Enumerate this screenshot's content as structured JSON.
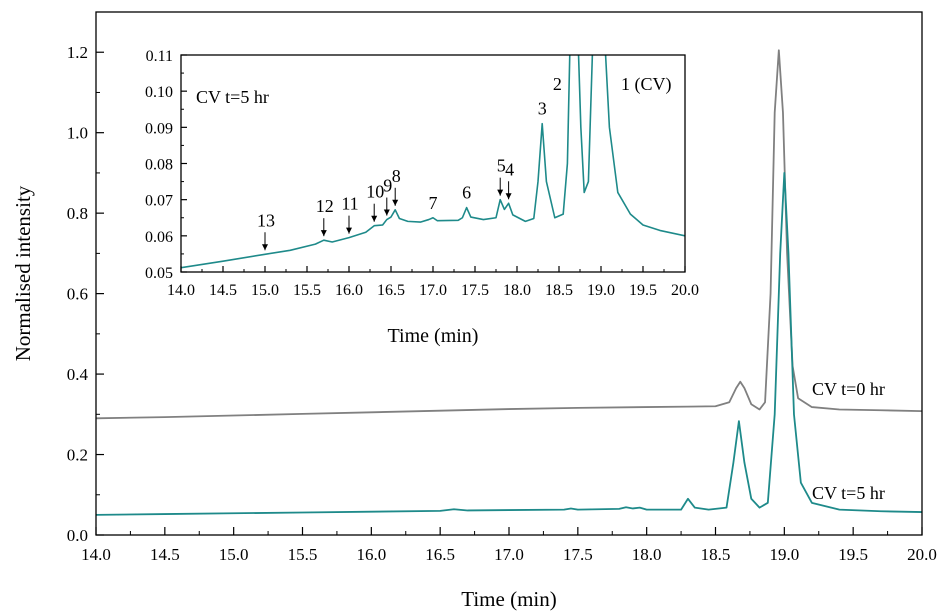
{
  "chart_data": [
    {
      "type": "line",
      "xlabel": "Time (min)",
      "ylabel": "Normalised intensity",
      "xlim": [
        14.0,
        20.0
      ],
      "ylim": [
        0.0,
        1.3
      ],
      "x_ticks": [
        "14.0",
        "14.5",
        "15.0",
        "15.5",
        "16.0",
        "16.5",
        "17.0",
        "17.5",
        "18.0",
        "18.5",
        "19.0",
        "19.5",
        "20.0"
      ],
      "y_ticks": [
        "0.0",
        "0.2",
        "0.4",
        "0.6",
        "0.8",
        "1.0",
        "1.2"
      ],
      "series": [
        {
          "name": "CV t=0 hr",
          "color": "#808080",
          "points": [
            [
              14.0,
              0.29
            ],
            [
              14.5,
              0.293
            ],
            [
              15.0,
              0.297
            ],
            [
              15.5,
              0.301
            ],
            [
              16.0,
              0.305
            ],
            [
              16.5,
              0.309
            ],
            [
              17.0,
              0.313
            ],
            [
              17.5,
              0.316
            ],
            [
              18.0,
              0.318
            ],
            [
              18.3,
              0.319
            ],
            [
              18.5,
              0.32
            ],
            [
              18.6,
              0.33
            ],
            [
              18.65,
              0.365
            ],
            [
              18.68,
              0.381
            ],
            [
              18.71,
              0.365
            ],
            [
              18.76,
              0.325
            ],
            [
              18.82,
              0.312
            ],
            [
              18.86,
              0.33
            ],
            [
              18.9,
              0.6
            ],
            [
              18.93,
              1.05
            ],
            [
              18.96,
              1.205
            ],
            [
              18.99,
              1.05
            ],
            [
              19.02,
              0.7
            ],
            [
              19.06,
              0.42
            ],
            [
              19.1,
              0.34
            ],
            [
              19.2,
              0.318
            ],
            [
              19.4,
              0.312
            ],
            [
              19.7,
              0.31
            ],
            [
              20.0,
              0.308
            ]
          ]
        },
        {
          "name": "CV t=5 hr",
          "color": "#1e8a8a",
          "points": [
            [
              14.0,
              0.05
            ],
            [
              14.5,
              0.052
            ],
            [
              15.0,
              0.054
            ],
            [
              15.5,
              0.056
            ],
            [
              16.0,
              0.058
            ],
            [
              16.5,
              0.06
            ],
            [
              16.6,
              0.064
            ],
            [
              16.7,
              0.061
            ],
            [
              17.0,
              0.062
            ],
            [
              17.4,
              0.063
            ],
            [
              17.45,
              0.066
            ],
            [
              17.5,
              0.063
            ],
            [
              17.8,
              0.065
            ],
            [
              17.85,
              0.069
            ],
            [
              17.9,
              0.066
            ],
            [
              17.95,
              0.068
            ],
            [
              18.0,
              0.063
            ],
            [
              18.25,
              0.063
            ],
            [
              18.3,
              0.09
            ],
            [
              18.35,
              0.068
            ],
            [
              18.45,
              0.063
            ],
            [
              18.58,
              0.068
            ],
            [
              18.63,
              0.18
            ],
            [
              18.67,
              0.283
            ],
            [
              18.71,
              0.18
            ],
            [
              18.76,
              0.09
            ],
            [
              18.82,
              0.068
            ],
            [
              18.88,
              0.08
            ],
            [
              18.93,
              0.3
            ],
            [
              18.97,
              0.7
            ],
            [
              19.0,
              0.9
            ],
            [
              19.03,
              0.7
            ],
            [
              19.07,
              0.3
            ],
            [
              19.12,
              0.13
            ],
            [
              19.2,
              0.08
            ],
            [
              19.4,
              0.063
            ],
            [
              19.7,
              0.059
            ],
            [
              20.0,
              0.057
            ]
          ]
        }
      ],
      "annotations": [
        "CV t=0 hr",
        "CV t=5 hr"
      ]
    },
    {
      "type": "line",
      "title": "CV t=5 hr",
      "xlabel": "Time (min)",
      "ylabel": "",
      "xlim": [
        14.0,
        20.0
      ],
      "ylim": [
        0.05,
        0.11
      ],
      "x_ticks": [
        "14.0",
        "14.5",
        "15.0",
        "15.5",
        "16.0",
        "16.5",
        "17.0",
        "17.5",
        "18.0",
        "18.5",
        "19.0",
        "19.5",
        "20.0"
      ],
      "y_ticks": [
        "0.05",
        "0.06",
        "0.07",
        "0.08",
        "0.09",
        "0.10",
        "0.11"
      ],
      "series": [
        {
          "color": "#1e8a8a",
          "points": [
            [
              14.0,
              0.0512
            ],
            [
              14.5,
              0.053
            ],
            [
              15.0,
              0.0549
            ],
            [
              15.3,
              0.056
            ],
            [
              15.6,
              0.0577
            ],
            [
              15.7,
              0.0588
            ],
            [
              15.8,
              0.0583
            ],
            [
              16.0,
              0.0595
            ],
            [
              16.2,
              0.061
            ],
            [
              16.3,
              0.0628
            ],
            [
              16.4,
              0.063
            ],
            [
              16.45,
              0.0645
            ],
            [
              16.5,
              0.0652
            ],
            [
              16.55,
              0.0672
            ],
            [
              16.6,
              0.0648
            ],
            [
              16.7,
              0.064
            ],
            [
              16.85,
              0.0638
            ],
            [
              16.95,
              0.0645
            ],
            [
              17.0,
              0.065
            ],
            [
              17.05,
              0.0642
            ],
            [
              17.3,
              0.0643
            ],
            [
              17.35,
              0.065
            ],
            [
              17.4,
              0.0678
            ],
            [
              17.45,
              0.0652
            ],
            [
              17.6,
              0.0645
            ],
            [
              17.75,
              0.065
            ],
            [
              17.8,
              0.07
            ],
            [
              17.85,
              0.0673
            ],
            [
              17.9,
              0.069
            ],
            [
              17.95,
              0.0658
            ],
            [
              18.1,
              0.064
            ],
            [
              18.2,
              0.0648
            ],
            [
              18.25,
              0.075
            ],
            [
              18.3,
              0.091
            ],
            [
              18.35,
              0.075
            ],
            [
              18.45,
              0.065
            ],
            [
              18.55,
              0.066
            ],
            [
              18.6,
              0.08
            ],
            [
              18.63,
              0.112
            ],
            [
              18.73,
              0.112
            ],
            [
              18.76,
              0.09
            ],
            [
              18.8,
              0.072
            ],
            [
              18.85,
              0.075
            ],
            [
              18.9,
              0.112
            ],
            [
              19.05,
              0.112
            ],
            [
              19.1,
              0.09
            ],
            [
              19.2,
              0.072
            ],
            [
              19.35,
              0.066
            ],
            [
              19.5,
              0.063
            ],
            [
              19.7,
              0.0615
            ],
            [
              20.0,
              0.06
            ]
          ]
        }
      ],
      "peak_labels": [
        {
          "text": "13",
          "x": 15.0,
          "y": 0.0549
        },
        {
          "text": "12",
          "x": 15.7,
          "y": 0.0588
        },
        {
          "text": "11",
          "x": 16.0,
          "y": 0.0595
        },
        {
          "text": "10",
          "x": 16.3,
          "y": 0.0628
        },
        {
          "text": "9",
          "x": 16.45,
          "y": 0.0645
        },
        {
          "text": "8",
          "x": 16.55,
          "y": 0.0672
        },
        {
          "text": "7",
          "x": 17.0,
          "y": 0.065
        },
        {
          "text": "6",
          "x": 17.4,
          "y": 0.0678
        },
        {
          "text": "5",
          "x": 17.8,
          "y": 0.07
        },
        {
          "text": "4",
          "x": 17.9,
          "y": 0.069
        },
        {
          "text": "3",
          "x": 18.3,
          "y": 0.091
        },
        {
          "text": "2",
          "x": 18.6,
          "y": 0.112
        },
        {
          "text": "1 (CV)",
          "x": 19.0,
          "y": 0.112
        }
      ],
      "arrow_labels": [
        "13",
        "12",
        "11",
        "10",
        "9",
        "8",
        "5",
        "4"
      ]
    }
  ]
}
